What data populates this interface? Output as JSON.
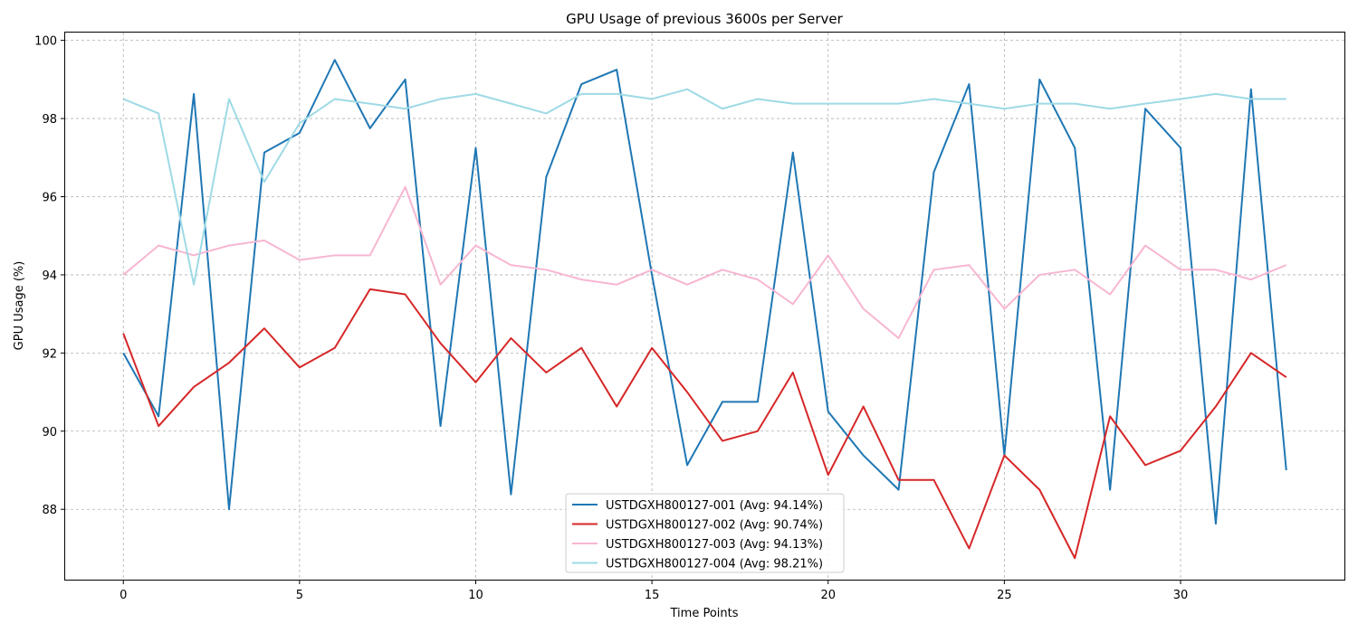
{
  "chart_data": {
    "type": "line",
    "title": "GPU Usage of previous 3600s per Server",
    "xlabel": "Time Points",
    "ylabel": "GPU Usage (%)",
    "xlim": [
      -1.65,
      34.65
    ],
    "ylim": [
      86.2,
      100.2
    ],
    "xticks": [
      0,
      5,
      10,
      15,
      20,
      25,
      30
    ],
    "yticks": [
      88,
      90,
      92,
      94,
      96,
      98,
      100
    ],
    "grid": true,
    "legend_position": "lower-center",
    "x": [
      0,
      1,
      2,
      3,
      4,
      5,
      6,
      7,
      8,
      9,
      10,
      11,
      12,
      13,
      14,
      15,
      16,
      17,
      18,
      19,
      20,
      21,
      22,
      23,
      24,
      25,
      26,
      27,
      28,
      29,
      30,
      31,
      32,
      33
    ],
    "series": [
      {
        "name": "USTDGXH800127-001 (Avg: 94.14%)",
        "color": "#1f77b4",
        "values": [
          92.0,
          90.38,
          98.63,
          88.0,
          97.13,
          97.63,
          99.5,
          97.75,
          99.0,
          90.13,
          97.25,
          88.38,
          96.5,
          98.88,
          99.25,
          94.0,
          89.13,
          90.75,
          90.75,
          97.13,
          90.5,
          89.38,
          88.5,
          96.63,
          98.88,
          89.38,
          99.0,
          97.25,
          88.5,
          98.25,
          97.25,
          87.63,
          98.75,
          89.0
        ]
      },
      {
        "name": "USTDGXH800127-002 (Avg: 90.74%)",
        "color": "#d62728",
        "values": [
          92.5,
          90.13,
          91.13,
          91.75,
          92.63,
          91.63,
          92.13,
          93.63,
          93.5,
          92.25,
          91.25,
          92.38,
          91.5,
          92.13,
          90.63,
          92.13,
          91.0,
          89.75,
          90.0,
          91.5,
          88.88,
          90.63,
          88.75,
          88.75,
          87.0,
          89.38,
          88.5,
          86.75,
          90.38,
          89.13,
          89.5,
          90.63,
          92.0,
          91.38
        ]
      },
      {
        "name": "USTDGXH800127-003 (Avg: 94.13%)",
        "color": "#f7b6d2",
        "values": [
          94.0,
          94.75,
          94.5,
          94.75,
          94.88,
          94.38,
          94.5,
          94.5,
          96.25,
          93.75,
          94.75,
          94.25,
          94.13,
          93.88,
          93.75,
          94.13,
          93.75,
          94.13,
          93.88,
          93.25,
          94.5,
          93.13,
          92.38,
          94.13,
          94.25,
          93.13,
          94.0,
          94.13,
          93.5,
          94.75,
          94.13,
          94.13,
          93.88,
          94.25
        ]
      },
      {
        "name": "USTDGXH800127-004 (Avg: 98.21%)",
        "color": "#9edae5",
        "values": [
          98.5,
          98.13,
          93.75,
          98.5,
          96.38,
          97.88,
          98.5,
          98.38,
          98.25,
          98.5,
          98.63,
          98.38,
          98.13,
          98.63,
          98.63,
          98.5,
          98.75,
          98.25,
          98.5,
          98.38,
          98.38,
          98.38,
          98.38,
          98.5,
          98.38,
          98.25,
          98.38,
          98.38,
          98.25,
          98.38,
          98.5,
          98.63,
          98.5,
          98.5
        ]
      }
    ]
  }
}
